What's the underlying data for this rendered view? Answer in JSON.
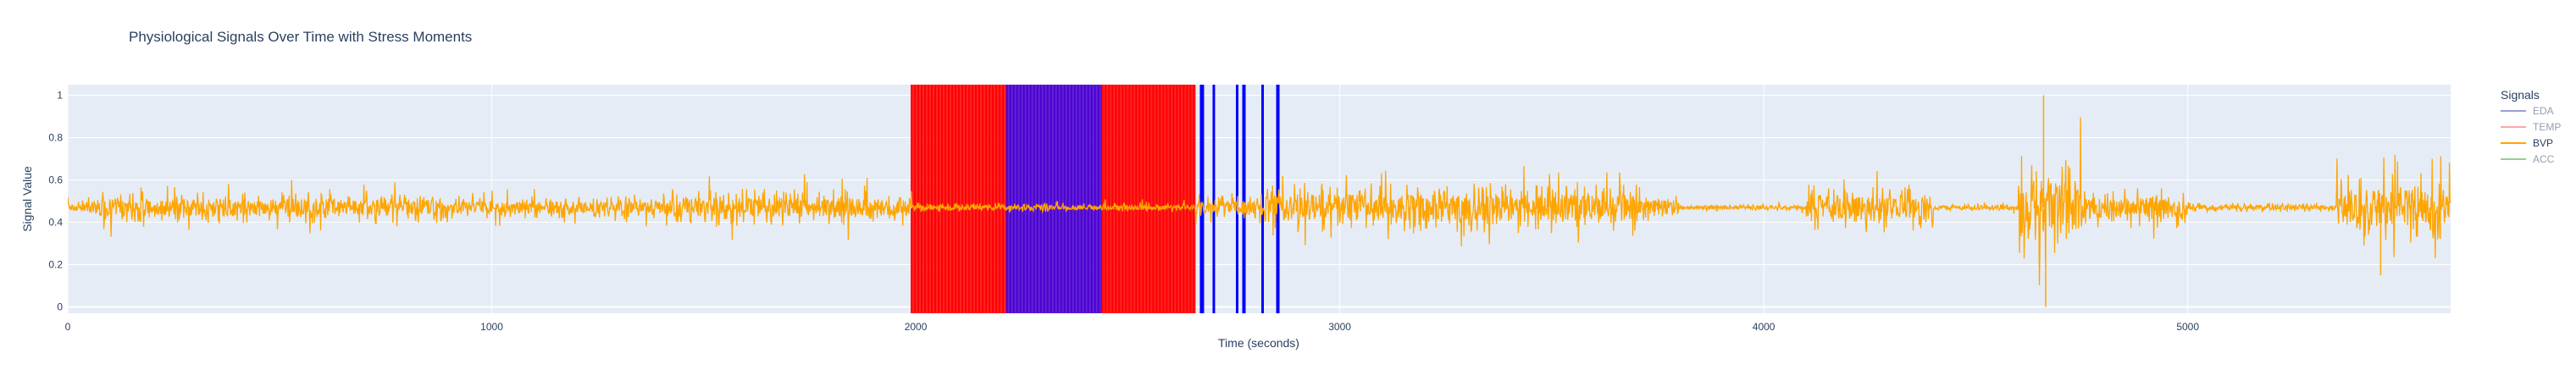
{
  "chart_data": {
    "type": "line",
    "title": "Physiological Signals Over Time with Stress Moments",
    "xlabel": "Time (seconds)",
    "ylabel": "Signal Value",
    "xlim": [
      0,
      5620
    ],
    "ylim": [
      -0.03,
      1.05
    ],
    "x_ticks": [
      0,
      1000,
      2000,
      3000,
      4000,
      5000
    ],
    "x_tick_labels": [
      "0",
      "1000",
      "2000",
      "3000",
      "4000",
      "5000"
    ],
    "y_ticks": [
      0,
      0.2,
      0.4,
      0.6,
      0.8,
      1
    ],
    "y_tick_labels": [
      "0",
      "0.2",
      "0.4",
      "0.6",
      "0.8",
      "1"
    ],
    "grid": true,
    "legend": {
      "title": "Signals",
      "placement": "right",
      "entries": [
        {
          "name": "EDA",
          "color": "#3b3bbf",
          "visible": false
        },
        {
          "name": "TEMP",
          "color": "#ff4d4d",
          "visible": false
        },
        {
          "name": "BVP",
          "color": "#ffa500",
          "visible": true
        },
        {
          "name": "ACC",
          "color": "#2ca02c",
          "visible": false
        }
      ]
    },
    "series": [
      {
        "name": "BVP",
        "color": "#ffa500",
        "baseline": 0.47,
        "amplitude_profile": [
          {
            "x": [
              0,
              60
            ],
            "amp": 0.06
          },
          {
            "x": [
              60,
              900
            ],
            "amp": 0.14
          },
          {
            "x": [
              900,
              1400
            ],
            "amp": 0.1
          },
          {
            "x": [
              1400,
              1990
            ],
            "amp": 0.16
          },
          {
            "x": [
              1990,
              2660
            ],
            "amp": 0.04
          },
          {
            "x": [
              2660,
              2820
            ],
            "amp": 0.1
          },
          {
            "x": [
              2820,
              3700
            ],
            "amp": 0.22
          },
          {
            "x": [
              3700,
              3800
            ],
            "amp": 0.12
          },
          {
            "x": [
              3800,
              4100
            ],
            "amp": 0.03
          },
          {
            "x": [
              4100,
              4400
            ],
            "amp": 0.2
          },
          {
            "x": [
              4400,
              4600
            ],
            "amp": 0.03
          },
          {
            "x": [
              4600,
              4750
            ],
            "amp": 0.45
          },
          {
            "x": [
              4750,
              5000
            ],
            "amp": 0.18
          },
          {
            "x": [
              5000,
              5350
            ],
            "amp": 0.04
          },
          {
            "x": [
              5350,
              5620
            ],
            "amp": 0.3
          }
        ],
        "peaks": [
          {
            "x": 4660,
            "y": 1.0
          },
          {
            "x": 4665,
            "y": 0.0
          },
          {
            "x": 5455,
            "y": 0.15
          }
        ]
      }
    ],
    "stress_moments": [
      {
        "x0": 1990,
        "x1": 2215,
        "color": "#ff0000",
        "style": "dense-red"
      },
      {
        "x0": 2215,
        "x1": 2440,
        "color": "#4b00d0",
        "style": "dense-purple"
      },
      {
        "x0": 2440,
        "x1": 2660,
        "color": "#ff0000",
        "style": "dense-red"
      },
      {
        "x0": 2670,
        "x1": 2680,
        "color": "#0000ff",
        "style": "line"
      },
      {
        "x0": 2700,
        "x1": 2705,
        "color": "#0000ff",
        "style": "line"
      },
      {
        "x0": 2755,
        "x1": 2760,
        "color": "#0000ff",
        "style": "line"
      },
      {
        "x0": 2770,
        "x1": 2778,
        "color": "#0000ff",
        "style": "line"
      },
      {
        "x0": 2815,
        "x1": 2820,
        "color": "#0000ff",
        "style": "line"
      },
      {
        "x0": 2850,
        "x1": 2858,
        "color": "#0000ff",
        "style": "line"
      }
    ]
  }
}
